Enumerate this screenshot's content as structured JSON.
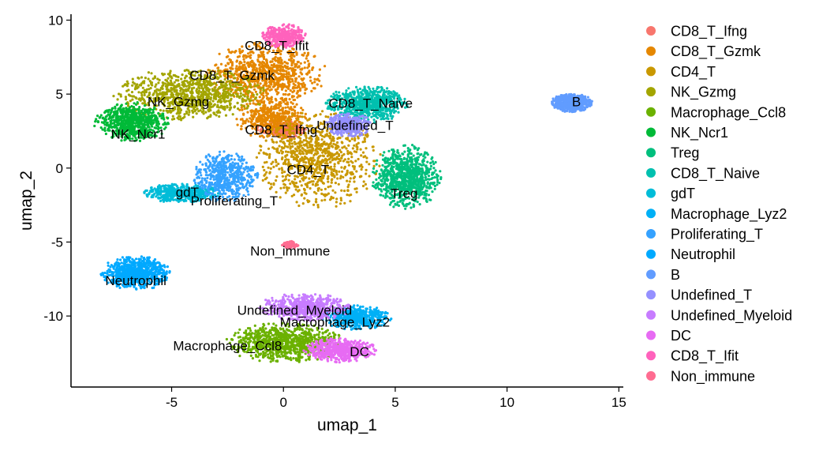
{
  "chart_data": {
    "type": "scatter",
    "xlabel": "umap_1",
    "ylabel": "umap_2",
    "xlim": [
      -9.5,
      15.2
    ],
    "ylim": [
      -14.8,
      10.4
    ],
    "xticks": [
      -5,
      0,
      5,
      10,
      15
    ],
    "xtick_labels": [
      "-5",
      "0",
      "5",
      "10",
      "15"
    ],
    "yticks": [
      -10,
      -5,
      0,
      5,
      10
    ],
    "ytick_labels": [
      "-10",
      "-5",
      "0",
      "5",
      "10"
    ],
    "grid": false,
    "legend_position": "right",
    "series": [
      {
        "name": "CD8_T_Ifng",
        "color": "#F8766D",
        "label_at": [
          -0.1,
          2.6
        ],
        "blobs": [
          [
            -0.1,
            2.6,
            1.1,
            0.6,
            0.3
          ]
        ]
      },
      {
        "name": "CD8_T_Gzmk",
        "color": "#E58700",
        "label_at": [
          -2.3,
          6.3
        ],
        "blobs": [
          [
            -0.8,
            6.4,
            2.6,
            2.0,
            0.9
          ],
          [
            -0.5,
            3.4,
            1.6,
            1.4,
            0.5
          ]
        ]
      },
      {
        "name": "CD4_T",
        "color": "#C99800",
        "label_at": [
          1.1,
          -0.1
        ],
        "blobs": [
          [
            1.6,
            0.6,
            2.7,
            3.2,
            1.0
          ]
        ]
      },
      {
        "name": "NK_Gzmg",
        "color": "#A3A500",
        "label_at": [
          -4.7,
          4.5
        ],
        "blobs": [
          [
            -4.2,
            5.0,
            3.3,
            1.7,
            1.0
          ]
        ]
      },
      {
        "name": "Macrophage_Ccl8",
        "color": "#6BB100",
        "label_at": [
          -2.5,
          -12.0
        ],
        "blobs": [
          [
            0.1,
            -11.8,
            2.6,
            1.3,
            1.0
          ]
        ]
      },
      {
        "name": "NK_Ncr1",
        "color": "#00BA38",
        "label_at": [
          -6.5,
          2.3
        ],
        "blobs": [
          [
            -6.8,
            3.1,
            1.6,
            1.3,
            0.8
          ]
        ]
      },
      {
        "name": "Treg",
        "color": "#00BF7D",
        "label_at": [
          5.4,
          -1.7
        ],
        "blobs": [
          [
            5.5,
            -0.6,
            1.5,
            2.1,
            1.0
          ]
        ]
      },
      {
        "name": "CD8_T_Naive",
        "color": "#00C0AF",
        "label_at": [
          3.9,
          4.4
        ],
        "blobs": [
          [
            3.7,
            4.3,
            1.8,
            1.2,
            0.8
          ]
        ]
      },
      {
        "name": "gdT",
        "color": "#00BCD8",
        "label_at": [
          -4.3,
          -1.6
        ],
        "blobs": [
          [
            -4.6,
            -1.7,
            1.7,
            0.6,
            0.6
          ]
        ]
      },
      {
        "name": "Macrophage_Lyz2",
        "color": "#00B0F6",
        "label_at": [
          2.3,
          -10.4
        ],
        "blobs": [
          [
            3.3,
            -10.1,
            1.5,
            0.8,
            0.6
          ]
        ]
      },
      {
        "name": "Proliferating_T",
        "color": "#35A2FF",
        "label_at": [
          -2.2,
          -2.2
        ],
        "blobs": [
          [
            -2.6,
            -0.6,
            1.4,
            1.7,
            0.6
          ]
        ]
      },
      {
        "name": "Neutrophil",
        "color": "#00A9FF",
        "label_at": [
          -6.6,
          -7.6
        ],
        "blobs": [
          [
            -6.6,
            -7.1,
            1.5,
            1.1,
            0.9
          ]
        ]
      },
      {
        "name": "B",
        "color": "#619CFF",
        "label_at": [
          13.1,
          4.5
        ],
        "blobs": [
          [
            12.9,
            4.4,
            0.9,
            0.6,
            0.8
          ]
        ]
      },
      {
        "name": "Undefined_T",
        "color": "#9590FF",
        "label_at": [
          3.2,
          2.9
        ],
        "blobs": [
          [
            2.9,
            2.9,
            1.0,
            0.8,
            0.4
          ]
        ]
      },
      {
        "name": "Undefined_Myeloid",
        "color": "#C77CFF",
        "label_at": [
          0.5,
          -9.6
        ],
        "blobs": [
          [
            1.0,
            -9.4,
            2.0,
            0.9,
            0.7
          ]
        ]
      },
      {
        "name": "DC",
        "color": "#E76BF3",
        "label_at": [
          3.4,
          -12.4
        ],
        "blobs": [
          [
            2.5,
            -12.3,
            1.6,
            0.8,
            0.6
          ]
        ]
      },
      {
        "name": "CD8_T_Ifit",
        "color": "#FF62BC",
        "label_at": [
          -0.3,
          8.3
        ],
        "blobs": [
          [
            0.0,
            8.9,
            1.0,
            0.8,
            0.4
          ]
        ]
      },
      {
        "name": "Non_immune",
        "color": "#FF6C91",
        "label_at": [
          0.3,
          -5.6
        ],
        "blobs": [
          [
            0.3,
            -5.2,
            0.35,
            0.25,
            0.1
          ]
        ]
      }
    ]
  }
}
